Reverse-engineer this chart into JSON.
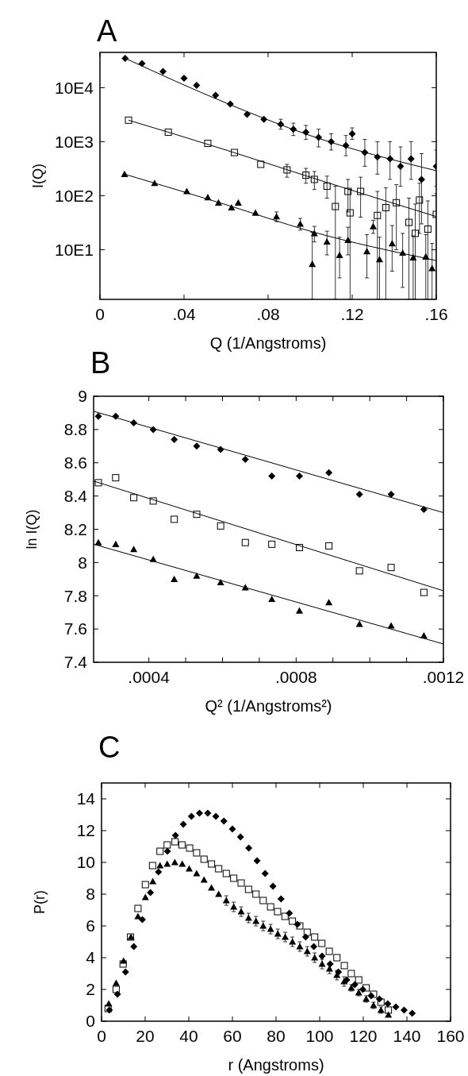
{
  "chart_data": [
    {
      "type": "scatter",
      "title": "A",
      "xlabel": "Q (1/Angstroms)",
      "ylabel": "I(Q)",
      "log": "y",
      "xlim": [
        0,
        0.16
      ],
      "ylim": [
        12,
        450000
      ],
      "xticks": [
        0,
        {
          "value": 0.04,
          "label": ".04"
        },
        {
          "value": 0.08,
          "label": ".08"
        },
        {
          "value": 0.12,
          "label": ".12"
        },
        {
          "value": 0.16,
          "label": ".16"
        }
      ],
      "yticks": [
        {
          "value": 100,
          "label": "10E1"
        },
        {
          "value": 1000,
          "label": "10E2"
        },
        {
          "value": 10000,
          "label": "10E3"
        },
        {
          "value": 100000,
          "label": "10E4"
        }
      ],
      "series": [
        {
          "marker": "diamond",
          "color": "#000000",
          "x": [
            0.012,
            0.02,
            0.03,
            0.04,
            0.046,
            0.055,
            0.062,
            0.07,
            0.078,
            0.086,
            0.092,
            0.098,
            0.104,
            0.11,
            0.117,
            0.12,
            0.126,
            0.132,
            0.138,
            0.143,
            0.148,
            0.153,
            0.16
          ],
          "values": [
            350000,
            280000,
            200000,
            150000,
            110000,
            72000,
            50000,
            32000,
            26000,
            21000,
            17000,
            15000,
            12000,
            10000,
            8500,
            14000,
            6300,
            5200,
            4800,
            3500,
            4800,
            2000,
            3500
          ],
          "errors": [
            null,
            null,
            null,
            null,
            null,
            null,
            null,
            null,
            null,
            [
              17000,
              26000
            ],
            [
              13000,
              22000
            ],
            [
              11000,
              20000
            ],
            [
              8000,
              17000
            ],
            [
              7000,
              14000
            ],
            [
              5500,
              13000
            ],
            [
              11000,
              18000
            ],
            [
              3500,
              11000
            ],
            [
              2500,
              10000
            ],
            [
              2000,
              10000
            ],
            [
              1500,
              8000
            ],
            [
              2000,
              10000
            ],
            [
              300,
              6000
            ],
            [
              1500,
              7000
            ]
          ]
        },
        {
          "marker": "square",
          "color": "#000000",
          "x": [
            0.0136,
            0.0325,
            0.0513,
            0.064,
            0.0765,
            0.089,
            0.098,
            0.102,
            0.108,
            0.112,
            0.118,
            0.119,
            0.124,
            0.132,
            0.136,
            0.141,
            0.147,
            0.15,
            0.152,
            0.156,
            0.16
          ],
          "values": [
            25000,
            15000,
            9300,
            6300,
            3800,
            3000,
            2400,
            2000,
            1500,
            630,
            1200,
            480,
            1200,
            430,
            600,
            740,
            320,
            200,
            830,
            240,
            450
          ],
          "errors": [
            null,
            null,
            null,
            null,
            null,
            [
              2200,
              3800
            ],
            [
              1700,
              3200
            ],
            [
              1300,
              2800
            ],
            [
              900,
              2300
            ],
            [
              12,
              1500
            ],
            [
              500,
              2000
            ],
            [
              12,
              1300
            ],
            [
              400,
              2200
            ],
            [
              12,
              1200
            ],
            [
              12,
              1400
            ],
            [
              100,
              1600
            ],
            [
              12,
              900
            ],
            [
              12,
              700
            ],
            [
              200,
              1700
            ],
            [
              12,
              800
            ],
            [
              12,
              1100
            ]
          ]
        },
        {
          "marker": "triangle",
          "color": "#000000",
          "x": [
            0.0117,
            0.026,
            0.0413,
            0.0513,
            0.0564,
            0.0626,
            0.0658,
            0.074,
            0.084,
            0.0953,
            0.101,
            0.102,
            0.108,
            0.114,
            0.118,
            0.127,
            0.13,
            0.133,
            0.139,
            0.144,
            0.149,
            0.155,
            0.158
          ],
          "values": [
            2500,
            1700,
            1200,
            930,
            740,
            600,
            740,
            480,
            410,
            300,
            54,
            200,
            140,
            79,
            150,
            93,
            270,
            66,
            130,
            87,
            71,
            74,
            45
          ],
          "errors": [
            null,
            null,
            null,
            null,
            null,
            null,
            null,
            null,
            [
              330,
              500
            ],
            [
              230,
              380
            ],
            [
              12,
              210
            ],
            [
              140,
              270
            ],
            [
              80,
              220
            ],
            [
              30,
              170
            ],
            [
              80,
              260
            ],
            [
              30,
              190
            ],
            [
              200,
              350
            ],
            [
              12,
              170
            ],
            [
              40,
              280
            ],
            [
              20,
              200
            ],
            [
              12,
              180
            ],
            [
              12,
              190
            ],
            [
              12,
              130
            ]
          ]
        },
        {
          "type": "line",
          "color": "#000000",
          "x": [
            0.012,
            0.06,
            0.1,
            0.16
          ],
          "values": [
            350000,
            52000,
            13000,
            2900
          ]
        },
        {
          "type": "line",
          "color": "#000000",
          "x": [
            0.0136,
            0.06,
            0.1,
            0.16
          ],
          "values": [
            25000,
            7000,
            2200,
            410
          ]
        },
        {
          "type": "line",
          "color": "#000000",
          "x": [
            0.0117,
            0.06,
            0.1,
            0.16
          ],
          "values": [
            2500,
            680,
            220,
            63
          ]
        }
      ]
    },
    {
      "type": "scatter",
      "title": "B",
      "xlabel": "Q² (1/Angstroms²)",
      "ylabel": "ln I(Q)",
      "xlim": [
        0.00025,
        0.0012
      ],
      "ylim": [
        7.4,
        9
      ],
      "xticks": [
        {
          "value": 0.0004,
          "label": ".0004"
        },
        {
          "value": 0.0005,
          "label": null
        },
        {
          "value": 0.0006,
          "label": null
        },
        {
          "value": 0.0007,
          "label": null
        },
        {
          "value": 0.0008,
          "label": ".0008"
        },
        {
          "value": 0.0009,
          "label": null
        },
        {
          "value": 0.001,
          "label": null
        },
        {
          "value": 0.0011,
          "label": null
        },
        {
          "value": 0.0012,
          "label": ".0012"
        }
      ],
      "yticks": [
        7.4,
        7.6,
        7.8,
        8,
        8.2,
        8.4,
        8.6,
        8.8,
        9
      ],
      "series": [
        {
          "marker": "diamond",
          "color": "#000000",
          "x": [
            0.000263,
            0.00031,
            0.000359,
            0.000412,
            0.000469,
            0.00053,
            0.000595,
            0.000662,
            0.000734,
            0.000809,
            0.000889,
            0.000972,
            0.001058,
            0.001147
          ],
          "values": [
            8.88,
            8.88,
            8.84,
            8.8,
            8.74,
            8.7,
            8.68,
            8.62,
            8.52,
            8.52,
            8.54,
            8.41,
            8.41,
            8.32
          ]
        },
        {
          "marker": "square",
          "color": "#000000",
          "x": [
            0.000263,
            0.00031,
            0.000359,
            0.000412,
            0.000469,
            0.00053,
            0.000595,
            0.000662,
            0.000734,
            0.000809,
            0.000889,
            0.000972,
            0.001058,
            0.001147
          ],
          "values": [
            8.48,
            8.51,
            8.39,
            8.37,
            8.26,
            8.29,
            8.22,
            8.12,
            8.11,
            8.09,
            8.1,
            7.95,
            7.97,
            7.82
          ]
        },
        {
          "marker": "triangle",
          "color": "#000000",
          "x": [
            0.000263,
            0.00031,
            0.000359,
            0.000412,
            0.000469,
            0.00053,
            0.000595,
            0.000662,
            0.000734,
            0.000809,
            0.000889,
            0.000972,
            0.001058,
            0.001147
          ],
          "values": [
            8.12,
            8.11,
            8.08,
            8.02,
            7.9,
            7.92,
            7.88,
            7.85,
            7.78,
            7.71,
            7.76,
            7.63,
            7.62,
            7.56
          ]
        },
        {
          "type": "line",
          "color": "#000000",
          "x": [
            0.00025,
            0.0012
          ],
          "values": [
            8.91,
            8.3
          ]
        },
        {
          "type": "line",
          "color": "#000000",
          "x": [
            0.00025,
            0.0012
          ],
          "values": [
            8.49,
            7.83
          ]
        },
        {
          "type": "line",
          "color": "#000000",
          "x": [
            0.00025,
            0.0012
          ],
          "values": [
            8.11,
            7.51
          ]
        }
      ]
    },
    {
      "type": "scatter",
      "title": "C",
      "xlabel": "r (Angstroms)",
      "ylabel": "P(r)",
      "xlim": [
        0,
        160
      ],
      "ylim": [
        0,
        15
      ],
      "xticks": [
        0,
        20,
        40,
        60,
        80,
        100,
        120,
        140,
        160
      ],
      "yticks": [
        0,
        2,
        4,
        6,
        8,
        10,
        12,
        14
      ],
      "series": [
        {
          "marker": "diamond",
          "color": "#000000",
          "x": [
            3.6,
            7.3,
            11,
            14.8,
            18.7,
            22.4,
            26.1,
            30.2,
            33.9,
            37.5,
            41.2,
            44.9,
            48.7,
            52.4,
            56.1,
            60,
            63.7,
            67.5,
            71.3,
            75,
            78.6,
            82.3,
            86.1,
            89.8,
            93.6,
            97.3,
            101.1,
            104.8,
            108.6,
            112.4,
            116.1,
            119.8,
            123.6,
            127.4,
            131.2,
            134.9,
            138.7,
            142.4
          ],
          "values": [
            0.7,
            1.7,
            3.1,
            4.7,
            6.4,
            8.1,
            9.4,
            10.7,
            11.7,
            12.4,
            12.9,
            13.1,
            13.1,
            12.9,
            12.6,
            12.1,
            11.6,
            10.9,
            10.1,
            9.3,
            8.5,
            7.7,
            6.8,
            6.1,
            5.3,
            4.7,
            4.1,
            3.6,
            3.1,
            2.6,
            2.3,
            2,
            1.6,
            1.4,
            1.1,
            0.9,
            0.7,
            0.5
          ]
        },
        {
          "marker": "square",
          "color": "#000000",
          "x": [
            3,
            6.7,
            9.9,
            13.3,
            16.7,
            20.1,
            23.4,
            26.8,
            30.1,
            33.7,
            36.9,
            40.4,
            43.6,
            47,
            50.4,
            53.7,
            57.2,
            60.6,
            64,
            67.4,
            70.8,
            74.1,
            77.5,
            80.7,
            84.1,
            87.5,
            90.9,
            94.3,
            97.7,
            101,
            104.4,
            107.9,
            111.3,
            114.5,
            117.9,
            121.3,
            124.7,
            128.1,
            131.5
          ],
          "values": [
            0.8,
            2,
            3.6,
            5.3,
            7.1,
            8.6,
            9.8,
            10.7,
            11.1,
            11.3,
            11.1,
            10.9,
            10.6,
            10.2,
            9.9,
            9.6,
            9.3,
            9,
            8.7,
            8.3,
            8,
            7.6,
            7.2,
            6.9,
            6.6,
            6.3,
            6,
            5.6,
            5.3,
            4.9,
            4.4,
            4,
            3.5,
            3,
            2.6,
            2.1,
            1.7,
            1.2,
            0.7
          ]
        },
        {
          "marker": "triangle",
          "color": "#000000",
          "x": [
            3.3,
            6.7,
            10.1,
            13.5,
            16.7,
            20.1,
            23.5,
            26.8,
            30.1,
            33.6,
            37,
            40.2,
            43.6,
            47,
            50.4,
            53.7,
            57.2,
            60.6,
            64,
            67.4,
            70.8,
            74.1,
            77.5,
            80.8,
            84.2,
            87.5,
            90.9,
            94.3,
            97.7,
            101.1,
            104.5,
            107.9,
            111.2,
            114.5,
            117.9,
            121.3,
            124.7,
            128.1,
            131.5
          ],
          "values": [
            1.1,
            2.4,
            3.8,
            5.3,
            6.6,
            7.8,
            8.8,
            9.8,
            9.9,
            10,
            9.9,
            9.6,
            9.3,
            8.9,
            8.4,
            8,
            7.6,
            7.2,
            6.9,
            6.5,
            6.3,
            6,
            5.8,
            5.5,
            5.3,
            5,
            4.7,
            4.4,
            4,
            3.6,
            3.3,
            2.9,
            2.5,
            2.1,
            1.8,
            1.4,
            1,
            0.7,
            0.4
          ],
          "errors": [
            null,
            null,
            null,
            null,
            null,
            null,
            null,
            null,
            null,
            null,
            null,
            null,
            null,
            null,
            null,
            null,
            0.3,
            0.3,
            0.3,
            0.3,
            0.3,
            0.3,
            0.3,
            0.3,
            0.3,
            0.3,
            0.3,
            0.3,
            0.3,
            0.3,
            0.3,
            0.3,
            0.3,
            0.2,
            0.2,
            0.2,
            0.2,
            0.2,
            null
          ]
        }
      ]
    }
  ]
}
